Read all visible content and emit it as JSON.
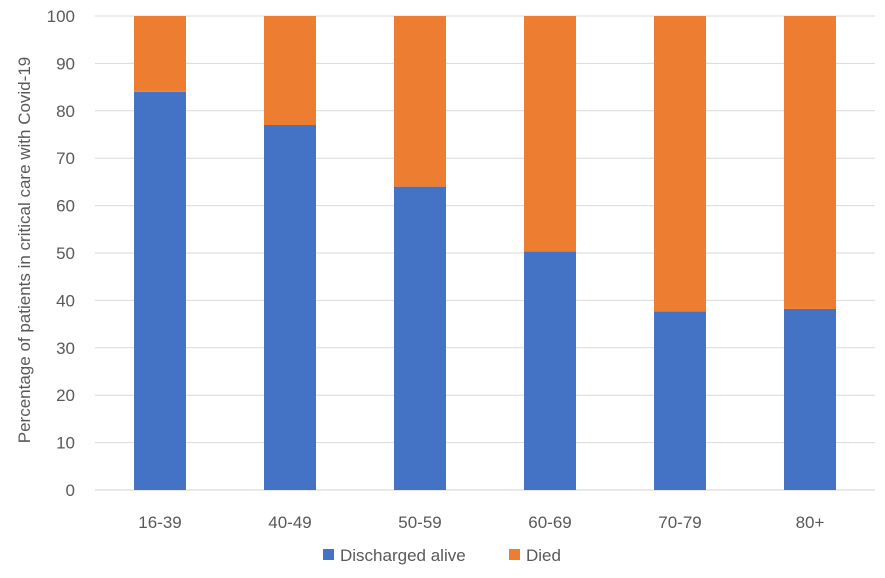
{
  "chart_data": {
    "type": "bar",
    "stacked": true,
    "title": "",
    "xlabel": "",
    "ylabel": "Percentage of patients in critical care with Covid-19",
    "ylim": [
      0,
      100
    ],
    "yticks": [
      0,
      10,
      20,
      30,
      40,
      50,
      60,
      70,
      80,
      90,
      100
    ],
    "grid": true,
    "legend_position": "bottom",
    "categories": [
      "16-39",
      "40-49",
      "50-59",
      "60-69",
      "70-79",
      "80+"
    ],
    "series": [
      {
        "name": "Discharged alive",
        "color": "#4472C4",
        "values": [
          84,
          77,
          64,
          50.3,
          37.7,
          38.2
        ]
      },
      {
        "name": "Died",
        "color": "#ED7D31",
        "values": [
          16,
          23,
          36,
          49.7,
          62.3,
          61.8
        ]
      }
    ]
  }
}
